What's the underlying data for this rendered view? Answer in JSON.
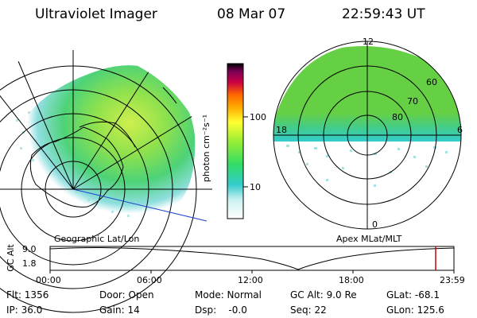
{
  "header": {
    "instrument": "Ultraviolet Imager",
    "date": "08 Mar 07",
    "time": "22:59:43 UT"
  },
  "colorbar": {
    "units": "photon cm⁻²s⁻¹",
    "ticks": [
      "100",
      "10"
    ],
    "scale": "log",
    "colors": [
      "#000000",
      "#7a0055",
      "#cc0044",
      "#ff6600",
      "#ffaa00",
      "#ffff33",
      "#99ee33",
      "#33dd66",
      "#33cccc",
      "#ffffff"
    ]
  },
  "left_map": {
    "label": "Geographic Lat/Lon",
    "projection": "polar",
    "emission_color": "#66dd33"
  },
  "right_map": {
    "label": "Apex MLat/MLT",
    "mlt_labels": {
      "top": "12",
      "left": "18",
      "right": "6",
      "bottom": "0"
    },
    "lat_labels": [
      "60",
      "70",
      "80"
    ],
    "emission_color": "#66dd33"
  },
  "altitude_plot": {
    "ylabel": "GC Alt",
    "yticks": [
      "9.0",
      "1.8"
    ],
    "xticks": [
      "00:00",
      "06:00",
      "12:00",
      "18:00",
      "23:59"
    ],
    "current_marker_color": "#cc0000"
  },
  "info": {
    "flt": "Flt: 1356",
    "ip": "IP: 36.0",
    "door": "Door: Open",
    "gain": "Gain: 14",
    "mode": "Mode: Normal",
    "dsp": "Dsp:    -0.0",
    "gcalt": "GC Alt: 9.0 Re",
    "seq": "Seq: 22",
    "glat": "GLat: -68.1",
    "glon": "GLon: 125.6"
  }
}
